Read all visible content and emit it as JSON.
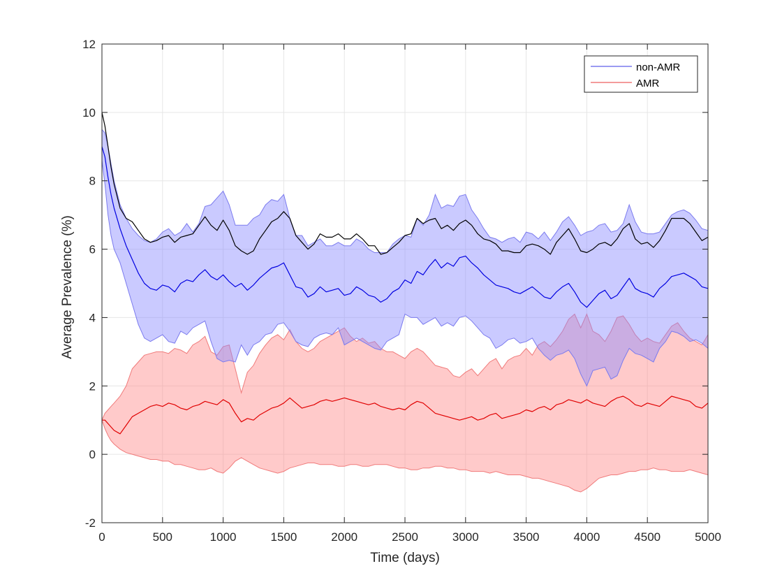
{
  "chart_data": {
    "type": "line",
    "title": "",
    "xlabel": "Time (days)",
    "ylabel": "Average Prevalence (%)",
    "xlim": [
      0,
      5000
    ],
    "ylim": [
      -2,
      12
    ],
    "xticks": [
      0,
      500,
      1000,
      1500,
      2000,
      2500,
      3000,
      3500,
      4000,
      4500,
      5000
    ],
    "yticks": [
      -2,
      0,
      2,
      4,
      6,
      8,
      10,
      12
    ],
    "grid": true,
    "legend_position": "top-right",
    "legend": [
      "non-AMR",
      "AMR"
    ],
    "series": [
      {
        "name": "non-AMR",
        "role": "mean",
        "color": "#0000e0",
        "band_color": "#8a8aff",
        "band_edge_color": "#7a7aee",
        "x": [
          0,
          25,
          50,
          75,
          100,
          150,
          200,
          250,
          300,
          350,
          400,
          450,
          500,
          550,
          600,
          650,
          700,
          750,
          800,
          850,
          900,
          950,
          1000,
          1050,
          1100,
          1150,
          1200,
          1250,
          1300,
          1350,
          1400,
          1450,
          1500,
          1550,
          1600,
          1650,
          1700,
          1750,
          1800,
          1850,
          1900,
          1950,
          2000,
          2050,
          2100,
          2150,
          2200,
          2250,
          2300,
          2350,
          2400,
          2450,
          2500,
          2550,
          2600,
          2650,
          2700,
          2750,
          2800,
          2850,
          2900,
          2950,
          3000,
          3050,
          3100,
          3150,
          3200,
          3250,
          3300,
          3350,
          3400,
          3450,
          3500,
          3550,
          3600,
          3650,
          3700,
          3750,
          3800,
          3850,
          3900,
          3950,
          4000,
          4050,
          4100,
          4150,
          4200,
          4250,
          4300,
          4350,
          4400,
          4450,
          4500,
          4550,
          4600,
          4650,
          4700,
          4750,
          4800,
          4850,
          4900,
          4950,
          5000
        ],
        "mean": [
          9.0,
          8.7,
          8.1,
          7.6,
          7.2,
          6.6,
          6.1,
          5.7,
          5.3,
          5.0,
          4.85,
          4.8,
          4.95,
          4.9,
          4.75,
          5.0,
          5.1,
          5.05,
          5.25,
          5.4,
          5.2,
          5.1,
          5.25,
          5.05,
          4.9,
          5.0,
          4.8,
          4.95,
          5.15,
          5.3,
          5.45,
          5.5,
          5.6,
          5.25,
          4.9,
          4.85,
          4.6,
          4.7,
          4.9,
          4.75,
          4.8,
          4.85,
          4.65,
          4.7,
          4.9,
          4.8,
          4.65,
          4.6,
          4.45,
          4.55,
          4.75,
          4.85,
          5.1,
          5.0,
          5.35,
          5.25,
          5.5,
          5.7,
          5.45,
          5.6,
          5.5,
          5.75,
          5.8,
          5.6,
          5.45,
          5.25,
          5.1,
          4.95,
          4.9,
          4.85,
          4.75,
          4.7,
          4.8,
          4.9,
          4.75,
          4.6,
          4.55,
          4.75,
          4.9,
          5.0,
          4.75,
          4.45,
          4.3,
          4.5,
          4.7,
          4.8,
          4.55,
          4.65,
          4.9,
          5.15,
          4.85,
          4.75,
          4.7,
          4.6,
          4.85,
          5.0,
          5.2,
          5.25,
          5.3,
          5.2,
          5.1,
          4.9,
          4.85
        ],
        "band_low": [
          8.6,
          7.9,
          7.0,
          6.4,
          6.0,
          5.6,
          5.0,
          4.4,
          3.8,
          3.4,
          3.3,
          3.4,
          3.5,
          3.3,
          3.25,
          3.6,
          3.5,
          3.7,
          3.8,
          3.9,
          3.3,
          2.8,
          2.7,
          2.75,
          2.7,
          3.2,
          2.9,
          3.2,
          3.3,
          3.5,
          3.55,
          3.8,
          3.85,
          3.6,
          3.3,
          3.2,
          3.15,
          3.4,
          3.5,
          3.55,
          3.5,
          3.7,
          3.2,
          3.3,
          3.4,
          3.3,
          3.2,
          3.1,
          3.05,
          3.3,
          3.4,
          3.5,
          4.1,
          4.0,
          4.0,
          3.8,
          3.9,
          4.0,
          3.75,
          3.85,
          3.75,
          4.0,
          4.05,
          3.9,
          3.7,
          3.5,
          3.4,
          3.1,
          3.2,
          3.35,
          3.4,
          3.25,
          3.3,
          3.4,
          3.1,
          2.9,
          2.75,
          2.9,
          2.95,
          3.05,
          2.8,
          2.35,
          2.0,
          2.45,
          2.5,
          2.55,
          2.2,
          2.3,
          2.75,
          3.1,
          2.95,
          2.9,
          2.8,
          2.7,
          3.1,
          3.3,
          3.6,
          3.55,
          3.45,
          3.3,
          3.35,
          3.25,
          3.1
        ],
        "band_high": [
          9.5,
          9.4,
          9.0,
          8.5,
          8.0,
          7.3,
          6.9,
          6.6,
          6.4,
          6.25,
          6.2,
          6.3,
          6.5,
          6.6,
          6.4,
          6.5,
          6.75,
          6.5,
          6.75,
          7.25,
          7.3,
          7.5,
          7.7,
          7.3,
          6.7,
          6.7,
          6.7,
          6.9,
          7.0,
          7.3,
          7.45,
          7.4,
          7.6,
          6.9,
          6.4,
          6.4,
          6.1,
          6.2,
          6.3,
          6.1,
          6.1,
          6.2,
          6.1,
          6.1,
          6.3,
          6.2,
          6.0,
          5.9,
          5.9,
          5.9,
          6.15,
          6.3,
          6.4,
          6.35,
          6.9,
          6.7,
          7.0,
          7.6,
          7.2,
          7.3,
          7.25,
          7.55,
          7.6,
          7.15,
          6.9,
          6.6,
          6.35,
          6.3,
          6.2,
          6.3,
          6.35,
          6.2,
          6.5,
          6.45,
          6.3,
          6.5,
          6.25,
          6.5,
          6.8,
          6.95,
          6.7,
          6.4,
          6.5,
          6.55,
          6.7,
          6.75,
          6.5,
          6.55,
          6.75,
          7.3,
          6.8,
          6.5,
          6.45,
          6.45,
          6.5,
          6.75,
          7.0,
          7.1,
          7.15,
          7.05,
          6.85,
          6.6,
          6.55
        ]
      },
      {
        "name": "AMR",
        "role": "mean",
        "color": "#e00000",
        "band_color": "#ff8a8a",
        "band_edge_color": "#f07a7a",
        "x": [
          0,
          25,
          50,
          75,
          100,
          150,
          200,
          250,
          300,
          350,
          400,
          450,
          500,
          550,
          600,
          650,
          700,
          750,
          800,
          850,
          900,
          950,
          1000,
          1050,
          1100,
          1150,
          1200,
          1250,
          1300,
          1350,
          1400,
          1450,
          1500,
          1550,
          1600,
          1650,
          1700,
          1750,
          1800,
          1850,
          1900,
          1950,
          2000,
          2050,
          2100,
          2150,
          2200,
          2250,
          2300,
          2350,
          2400,
          2450,
          2500,
          2550,
          2600,
          2650,
          2700,
          2750,
          2800,
          2850,
          2900,
          2950,
          3000,
          3050,
          3100,
          3150,
          3200,
          3250,
          3300,
          3350,
          3400,
          3450,
          3500,
          3550,
          3600,
          3650,
          3700,
          3750,
          3800,
          3850,
          3900,
          3950,
          4000,
          4050,
          4100,
          4150,
          4200,
          4250,
          4300,
          4350,
          4400,
          4450,
          4500,
          4550,
          4600,
          4650,
          4700,
          4750,
          4800,
          4850,
          4900,
          4950,
          5000
        ],
        "mean": [
          1.0,
          1.0,
          0.9,
          0.8,
          0.7,
          0.6,
          0.85,
          1.1,
          1.2,
          1.3,
          1.4,
          1.45,
          1.4,
          1.5,
          1.45,
          1.35,
          1.3,
          1.4,
          1.45,
          1.55,
          1.5,
          1.45,
          1.6,
          1.5,
          1.2,
          0.95,
          1.05,
          1.0,
          1.15,
          1.25,
          1.35,
          1.4,
          1.5,
          1.65,
          1.5,
          1.35,
          1.4,
          1.45,
          1.55,
          1.6,
          1.55,
          1.6,
          1.65,
          1.6,
          1.55,
          1.5,
          1.45,
          1.5,
          1.4,
          1.35,
          1.3,
          1.35,
          1.3,
          1.45,
          1.55,
          1.5,
          1.35,
          1.2,
          1.15,
          1.1,
          1.05,
          1.0,
          1.05,
          1.1,
          1.0,
          1.05,
          1.15,
          1.2,
          1.05,
          1.1,
          1.15,
          1.2,
          1.3,
          1.25,
          1.35,
          1.4,
          1.3,
          1.45,
          1.5,
          1.6,
          1.55,
          1.5,
          1.6,
          1.5,
          1.45,
          1.4,
          1.55,
          1.65,
          1.7,
          1.6,
          1.45,
          1.4,
          1.5,
          1.45,
          1.4,
          1.55,
          1.7,
          1.65,
          1.6,
          1.55,
          1.4,
          1.35,
          1.5
        ],
        "band_low": [
          1.0,
          0.75,
          0.55,
          0.4,
          0.3,
          0.15,
          0.05,
          0.0,
          -0.05,
          -0.1,
          -0.15,
          -0.15,
          -0.2,
          -0.2,
          -0.3,
          -0.3,
          -0.35,
          -0.4,
          -0.45,
          -0.45,
          -0.4,
          -0.5,
          -0.55,
          -0.4,
          -0.2,
          -0.1,
          -0.2,
          -0.3,
          -0.4,
          -0.45,
          -0.5,
          -0.55,
          -0.5,
          -0.4,
          -0.35,
          -0.3,
          -0.25,
          -0.25,
          -0.3,
          -0.3,
          -0.3,
          -0.35,
          -0.35,
          -0.3,
          -0.3,
          -0.35,
          -0.35,
          -0.3,
          -0.3,
          -0.3,
          -0.35,
          -0.4,
          -0.4,
          -0.45,
          -0.45,
          -0.4,
          -0.4,
          -0.35,
          -0.35,
          -0.4,
          -0.4,
          -0.45,
          -0.45,
          -0.5,
          -0.5,
          -0.5,
          -0.55,
          -0.5,
          -0.55,
          -0.6,
          -0.6,
          -0.6,
          -0.65,
          -0.7,
          -0.7,
          -0.75,
          -0.8,
          -0.85,
          -0.9,
          -0.95,
          -1.05,
          -1.1,
          -1.0,
          -0.85,
          -0.7,
          -0.65,
          -0.6,
          -0.6,
          -0.55,
          -0.5,
          -0.5,
          -0.45,
          -0.45,
          -0.4,
          -0.45,
          -0.45,
          -0.5,
          -0.5,
          -0.5,
          -0.45,
          -0.5,
          -0.55,
          -0.6
        ],
        "band_high": [
          1.0,
          1.2,
          1.3,
          1.4,
          1.5,
          1.7,
          2.0,
          2.5,
          2.7,
          2.9,
          2.95,
          3.0,
          3.0,
          2.95,
          3.1,
          3.05,
          2.95,
          3.2,
          3.3,
          3.45,
          3.0,
          2.9,
          3.15,
          3.2,
          2.5,
          1.8,
          2.4,
          2.6,
          2.95,
          3.2,
          3.4,
          3.5,
          3.35,
          3.65,
          3.3,
          3.1,
          3.0,
          3.1,
          3.3,
          3.4,
          3.5,
          3.6,
          3.7,
          3.45,
          3.3,
          3.4,
          3.25,
          3.3,
          3.1,
          3.0,
          3.0,
          2.9,
          2.8,
          3.0,
          3.1,
          3.0,
          2.8,
          2.6,
          2.55,
          2.5,
          2.3,
          2.25,
          2.4,
          2.5,
          2.3,
          2.5,
          2.7,
          2.8,
          2.5,
          2.75,
          2.85,
          2.9,
          3.1,
          2.9,
          3.2,
          3.3,
          3.15,
          3.35,
          3.6,
          3.95,
          4.1,
          3.7,
          4.1,
          3.6,
          3.5,
          3.3,
          3.6,
          4.0,
          4.05,
          3.8,
          3.5,
          3.3,
          3.4,
          3.3,
          3.25,
          3.5,
          3.75,
          3.85,
          3.6,
          3.4,
          3.3,
          3.2,
          3.5
        ]
      },
      {
        "name": "",
        "role": "total",
        "color": "#000000",
        "x": [
          0,
          25,
          50,
          75,
          100,
          150,
          200,
          250,
          300,
          350,
          400,
          450,
          500,
          550,
          600,
          650,
          700,
          750,
          800,
          850,
          900,
          950,
          1000,
          1050,
          1100,
          1150,
          1200,
          1250,
          1300,
          1350,
          1400,
          1450,
          1500,
          1550,
          1600,
          1650,
          1700,
          1750,
          1800,
          1850,
          1900,
          1950,
          2000,
          2050,
          2100,
          2150,
          2200,
          2250,
          2300,
          2350,
          2400,
          2450,
          2500,
          2550,
          2600,
          2650,
          2700,
          2750,
          2800,
          2850,
          2900,
          2950,
          3000,
          3050,
          3100,
          3150,
          3200,
          3250,
          3300,
          3350,
          3400,
          3450,
          3500,
          3550,
          3600,
          3650,
          3700,
          3750,
          3800,
          3850,
          3900,
          3950,
          4000,
          4050,
          4100,
          4150,
          4200,
          4250,
          4300,
          4350,
          4400,
          4450,
          4500,
          4550,
          4600,
          4650,
          4700,
          4750,
          4800,
          4850,
          4900,
          4950,
          5000
        ],
        "values": [
          10.0,
          9.6,
          9.0,
          8.4,
          7.9,
          7.2,
          6.9,
          6.8,
          6.55,
          6.3,
          6.2,
          6.25,
          6.35,
          6.4,
          6.2,
          6.35,
          6.4,
          6.45,
          6.7,
          6.95,
          6.7,
          6.55,
          6.85,
          6.55,
          6.1,
          5.95,
          5.85,
          5.95,
          6.3,
          6.55,
          6.8,
          6.9,
          7.1,
          6.9,
          6.4,
          6.2,
          6.0,
          6.15,
          6.45,
          6.35,
          6.35,
          6.45,
          6.3,
          6.3,
          6.45,
          6.3,
          6.1,
          6.1,
          5.85,
          5.9,
          6.05,
          6.2,
          6.4,
          6.45,
          6.9,
          6.75,
          6.85,
          6.9,
          6.6,
          6.7,
          6.55,
          6.75,
          6.85,
          6.7,
          6.45,
          6.3,
          6.25,
          6.15,
          5.95,
          5.95,
          5.9,
          5.9,
          6.1,
          6.15,
          6.1,
          6.0,
          5.85,
          6.2,
          6.4,
          6.6,
          6.3,
          5.95,
          5.9,
          6.0,
          6.15,
          6.2,
          6.1,
          6.3,
          6.6,
          6.75,
          6.3,
          6.15,
          6.2,
          6.05,
          6.25,
          6.55,
          6.9,
          6.9,
          6.9,
          6.75,
          6.5,
          6.25,
          6.35
        ]
      }
    ]
  },
  "colors": {
    "axis": "#262626",
    "grid": "#e6e6e6",
    "background": "#ffffff"
  }
}
